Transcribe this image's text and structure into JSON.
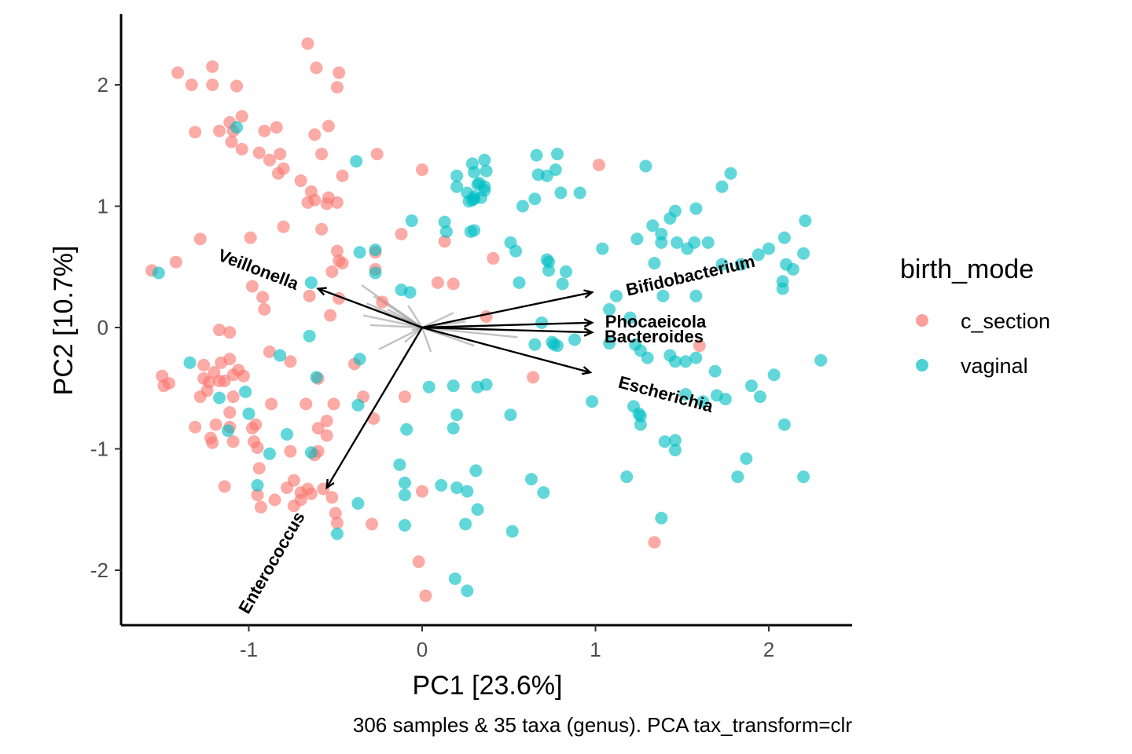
{
  "chart_data": {
    "type": "scatter",
    "xlabel": "PC1 [23.6%]",
    "ylabel": "PC2 [10.7%]",
    "caption": "306 samples & 35 taxa (genus). PCA tax_transform=clr",
    "xlim": [
      -1.73,
      2.46
    ],
    "ylim": [
      -2.46,
      2.57
    ],
    "xticks": [
      -1,
      0,
      1,
      2
    ],
    "yticks": [
      -2,
      -1,
      0,
      1,
      2
    ],
    "grid": false,
    "legend": {
      "title": "birth_mode",
      "position": "right",
      "entries": [
        {
          "label": "c_section",
          "color": "#F8766D"
        },
        {
          "label": "vaginal",
          "color": "#00BFC4"
        }
      ]
    },
    "series": [
      {
        "name": "c_section",
        "color": "#F8766D",
        "points": [
          [
            -0.66,
            2.34
          ],
          [
            -0.61,
            2.14
          ],
          [
            -0.48,
            2.1
          ],
          [
            -0.49,
            1.98
          ],
          [
            -1.41,
            2.1
          ],
          [
            -1.21,
            2.15
          ],
          [
            -1.33,
            2.0
          ],
          [
            -1.21,
            2.0
          ],
          [
            -1.07,
            1.99
          ],
          [
            -1.04,
            1.74
          ],
          [
            -1.11,
            1.69
          ],
          [
            -1.09,
            1.62
          ],
          [
            -1.17,
            1.62
          ],
          [
            -0.54,
            1.66
          ],
          [
            -0.62,
            1.59
          ],
          [
            -1.31,
            1.61
          ],
          [
            -0.91,
            1.62
          ],
          [
            -0.84,
            1.65
          ],
          [
            -1.1,
            1.53
          ],
          [
            -1.04,
            1.47
          ],
          [
            -0.94,
            1.44
          ],
          [
            -0.82,
            1.43
          ],
          [
            -0.88,
            1.38
          ],
          [
            -0.8,
            1.31
          ],
          [
            -0.83,
            1.27
          ],
          [
            -0.58,
            1.43
          ],
          [
            -0.26,
            1.43
          ],
          [
            -0.46,
            1.25
          ],
          [
            -0.7,
            1.21
          ],
          [
            -0.64,
            1.12
          ],
          [
            -0.54,
            1.07
          ],
          [
            -0.62,
            1.05
          ],
          [
            -0.66,
            1.03
          ],
          [
            -0.55,
            1.02
          ],
          [
            -0.49,
            1.03
          ],
          [
            0.0,
            1.3
          ],
          [
            1.02,
            1.34
          ],
          [
            -0.8,
            0.83
          ],
          [
            -0.58,
            0.81
          ],
          [
            -1.28,
            0.73
          ],
          [
            -0.99,
            0.74
          ],
          [
            -0.12,
            0.77
          ],
          [
            0.13,
            0.71
          ],
          [
            -0.49,
            0.63
          ],
          [
            -0.48,
            0.55
          ],
          [
            -0.46,
            0.53
          ],
          [
            -0.27,
            0.62
          ],
          [
            -1.56,
            0.47
          ],
          [
            -1.42,
            0.54
          ],
          [
            -0.52,
            0.46
          ],
          [
            -0.27,
            0.48
          ],
          [
            0.41,
            0.57
          ],
          [
            -0.98,
            0.34
          ],
          [
            -0.65,
            0.26
          ],
          [
            -0.92,
            0.25
          ],
          [
            -0.91,
            0.15
          ],
          [
            -0.48,
            0.24
          ],
          [
            -0.23,
            0.21
          ],
          [
            0.09,
            0.37
          ],
          [
            0.18,
            0.36
          ],
          [
            -0.53,
            0.1
          ],
          [
            0.37,
            0.09
          ],
          [
            -1.17,
            -0.02
          ],
          [
            -1.11,
            -0.04
          ],
          [
            -0.88,
            -0.2
          ],
          [
            -1.11,
            -0.26
          ],
          [
            -0.76,
            -0.28
          ],
          [
            -1.16,
            -0.29
          ],
          [
            -1.06,
            -0.35
          ],
          [
            -1.26,
            -0.31
          ],
          [
            -1.09,
            -0.39
          ],
          [
            -1.2,
            -0.37
          ],
          [
            -1.17,
            -0.44
          ],
          [
            -1.14,
            -0.44
          ],
          [
            -1.03,
            -0.4
          ],
          [
            -0.6,
            -0.42
          ],
          [
            -0.39,
            -0.3
          ],
          [
            -1.5,
            -0.4
          ],
          [
            -1.49,
            -0.48
          ],
          [
            -1.46,
            -0.46
          ],
          [
            -1.26,
            -0.42
          ],
          [
            -1.23,
            -0.45
          ],
          [
            -1.24,
            -0.52
          ],
          [
            -1.28,
            -0.57
          ],
          [
            -1.09,
            -0.57
          ],
          [
            -0.87,
            -0.63
          ],
          [
            -0.67,
            -0.63
          ],
          [
            -0.51,
            -0.63
          ],
          [
            -0.34,
            -0.57
          ],
          [
            -0.1,
            -0.57
          ],
          [
            -1.31,
            -0.82
          ],
          [
            -1.19,
            -0.8
          ],
          [
            -1.11,
            -0.82
          ],
          [
            -0.98,
            -0.83
          ],
          [
            -1.11,
            -0.7
          ],
          [
            -0.96,
            -0.8
          ],
          [
            -0.55,
            -0.77
          ],
          [
            -0.6,
            -0.83
          ],
          [
            -0.55,
            -0.89
          ],
          [
            -0.28,
            -0.75
          ],
          [
            -1.21,
            -0.95
          ],
          [
            -1.22,
            -0.91
          ],
          [
            -1.09,
            -0.94
          ],
          [
            -0.97,
            -0.94
          ],
          [
            -0.95,
            -0.99
          ],
          [
            -0.76,
            -1.02
          ],
          [
            -0.62,
            -1.05
          ],
          [
            -0.6,
            -1.02
          ],
          [
            -0.94,
            -1.16
          ],
          [
            -1.14,
            -1.31
          ],
          [
            -0.78,
            -1.32
          ],
          [
            -0.74,
            -1.26
          ],
          [
            -0.7,
            -1.36
          ],
          [
            -0.66,
            -1.33
          ],
          [
            -0.7,
            -1.42
          ],
          [
            -0.64,
            -1.37
          ],
          [
            -0.57,
            -1.33
          ],
          [
            -0.95,
            -1.38
          ],
          [
            -0.93,
            -1.48
          ],
          [
            -0.85,
            -1.42
          ],
          [
            -0.74,
            -1.47
          ],
          [
            -0.52,
            -1.4
          ],
          [
            -0.5,
            -1.53
          ],
          [
            -0.49,
            -1.61
          ],
          [
            -0.29,
            -1.62
          ],
          [
            0.0,
            -1.35
          ],
          [
            -0.02,
            -1.93
          ],
          [
            0.02,
            -2.21
          ],
          [
            1.34,
            -1.77
          ],
          [
            0.64,
            -0.41
          ],
          [
            1.6,
            -0.15
          ]
        ]
      },
      {
        "name": "vaginal",
        "color": "#00BFC4",
        "points": [
          [
            -1.52,
            0.45
          ],
          [
            -1.07,
            1.65
          ],
          [
            -1.34,
            -0.29
          ],
          [
            -1.17,
            -0.58
          ],
          [
            -1.12,
            -0.85
          ],
          [
            -1.02,
            -0.53
          ],
          [
            -1.0,
            -0.71
          ],
          [
            -0.88,
            -1.04
          ],
          [
            -0.78,
            -0.88
          ],
          [
            -0.64,
            -1.03
          ],
          [
            -0.95,
            -1.3
          ],
          [
            -0.82,
            -0.23
          ],
          [
            -0.64,
            0.37
          ],
          [
            -0.65,
            -0.07
          ],
          [
            -0.61,
            -0.41
          ],
          [
            -0.37,
            -0.64
          ],
          [
            -0.37,
            -1.45
          ],
          [
            -0.49,
            -1.7
          ],
          [
            -0.36,
            0.62
          ],
          [
            -0.38,
            1.37
          ],
          [
            -0.27,
            0.45
          ],
          [
            -0.27,
            0.64
          ],
          [
            -0.12,
            0.31
          ],
          [
            -0.07,
            0.29
          ],
          [
            -0.06,
            0.88
          ],
          [
            -0.36,
            -0.26
          ],
          [
            -0.13,
            -1.13
          ],
          [
            -0.1,
            -1.28
          ],
          [
            -0.1,
            -1.38
          ],
          [
            -0.1,
            -1.63
          ],
          [
            -0.09,
            -0.84
          ],
          [
            0.04,
            -0.49
          ],
          [
            0.11,
            -1.3
          ],
          [
            0.13,
            0.87
          ],
          [
            0.14,
            0.79
          ],
          [
            0.2,
            1.25
          ],
          [
            0.2,
            1.16
          ],
          [
            0.26,
            1.11
          ],
          [
            0.27,
            1.04
          ],
          [
            0.3,
            1.06
          ],
          [
            0.28,
            0.79
          ],
          [
            0.3,
            1.28
          ],
          [
            0.33,
            1.19
          ],
          [
            0.32,
            1.18
          ],
          [
            0.29,
            1.05
          ],
          [
            0.3,
            1.08
          ],
          [
            0.36,
            1.16
          ],
          [
            0.34,
            1.07
          ],
          [
            0.37,
            1.29
          ],
          [
            0.36,
            1.13
          ],
          [
            0.36,
            1.38
          ],
          [
            0.3,
            0.8
          ],
          [
            0.29,
            1.35
          ],
          [
            0.18,
            -0.48
          ],
          [
            0.18,
            -0.83
          ],
          [
            0.2,
            -1.32
          ],
          [
            0.32,
            -0.49
          ],
          [
            0.31,
            -1.18
          ],
          [
            0.32,
            -1.5
          ],
          [
            0.37,
            -0.47
          ],
          [
            0.2,
            -0.72
          ],
          [
            0.25,
            -1.62
          ],
          [
            0.26,
            -1.35
          ],
          [
            0.19,
            -2.07
          ],
          [
            0.26,
            -2.17
          ],
          [
            0.51,
            0.7
          ],
          [
            0.54,
            0.63
          ],
          [
            0.58,
            1.0
          ],
          [
            0.65,
            1.06
          ],
          [
            0.66,
            1.42
          ],
          [
            0.67,
            1.26
          ],
          [
            0.77,
            1.3
          ],
          [
            0.72,
            1.25
          ],
          [
            0.78,
            1.43
          ],
          [
            0.8,
            1.11
          ],
          [
            0.72,
            0.56
          ],
          [
            0.73,
            0.54
          ],
          [
            0.83,
            0.46
          ],
          [
            0.56,
            0.37
          ],
          [
            0.73,
            0.47
          ],
          [
            0.81,
            0.36
          ],
          [
            0.91,
            1.11
          ],
          [
            1.04,
            0.65
          ],
          [
            1.08,
            0.15
          ],
          [
            1.12,
            0.26
          ],
          [
            1.29,
            1.33
          ],
          [
            1.24,
            0.73
          ],
          [
            1.33,
            0.84
          ],
          [
            1.34,
            0.53
          ],
          [
            1.38,
            0.7
          ],
          [
            1.38,
            0.77
          ],
          [
            1.43,
            0.9
          ],
          [
            1.46,
            0.96
          ],
          [
            1.47,
            0.7
          ],
          [
            1.53,
            0.65
          ],
          [
            1.57,
            0.7
          ],
          [
            1.58,
            0.98
          ],
          [
            1.65,
            0.7
          ],
          [
            1.73,
            1.16
          ],
          [
            1.78,
            1.27
          ],
          [
            1.73,
            0.52
          ],
          [
            1.84,
            0.52
          ],
          [
            2.0,
            0.65
          ],
          [
            2.09,
            0.74
          ],
          [
            2.1,
            0.52
          ],
          [
            2.08,
            0.38
          ],
          [
            2.21,
            0.88
          ],
          [
            2.2,
            0.61
          ],
          [
            2.14,
            0.48
          ],
          [
            2.08,
            0.32
          ],
          [
            1.94,
            0.6
          ],
          [
            1.39,
            0.26
          ],
          [
            1.58,
            0.26
          ],
          [
            1.2,
            0.08
          ],
          [
            0.69,
            0.04
          ],
          [
            0.65,
            -0.14
          ],
          [
            0.75,
            -0.12
          ],
          [
            0.76,
            -0.14
          ],
          [
            0.78,
            -0.15
          ],
          [
            0.88,
            -0.1
          ],
          [
            1.08,
            -0.13
          ],
          [
            1.23,
            -0.14
          ],
          [
            1.26,
            -0.19
          ],
          [
            1.3,
            -0.25
          ],
          [
            1.43,
            -0.23
          ],
          [
            1.46,
            -0.28
          ],
          [
            1.52,
            -0.28
          ],
          [
            1.58,
            -0.25
          ],
          [
            1.69,
            -0.36
          ],
          [
            0.98,
            -0.61
          ],
          [
            1.22,
            -0.65
          ],
          [
            1.25,
            -0.71
          ],
          [
            1.26,
            -0.73
          ],
          [
            1.26,
            -0.8
          ],
          [
            1.4,
            -0.94
          ],
          [
            1.46,
            -0.93
          ],
          [
            1.46,
            -1.01
          ],
          [
            1.52,
            -0.55
          ],
          [
            1.62,
            -0.61
          ],
          [
            1.7,
            -0.56
          ],
          [
            1.75,
            -0.59
          ],
          [
            1.9,
            -0.48
          ],
          [
            1.95,
            -0.57
          ],
          [
            2.03,
            -0.39
          ],
          [
            2.09,
            -0.8
          ],
          [
            2.3,
            -0.27
          ],
          [
            1.87,
            -1.08
          ],
          [
            1.82,
            -1.23
          ],
          [
            2.2,
            -1.23
          ],
          [
            1.18,
            -1.23
          ],
          [
            1.38,
            -1.57
          ],
          [
            0.51,
            -0.72
          ],
          [
            0.63,
            -1.25
          ],
          [
            0.7,
            -1.36
          ],
          [
            0.52,
            -1.68
          ]
        ]
      }
    ],
    "loadings": [
      {
        "label": "Bifidobacterium",
        "end": [
          0.98,
          0.29
        ],
        "labelled": true
      },
      {
        "label": "Phocaeicola",
        "end": [
          0.98,
          0.04
        ],
        "labelled": true
      },
      {
        "label": "Bacteroides",
        "end": [
          0.98,
          -0.04
        ],
        "labelled": true
      },
      {
        "label": "Escherichia",
        "end": [
          0.97,
          -0.37
        ],
        "labelled": true
      },
      {
        "label": "Veillonella",
        "end": [
          -0.6,
          0.32
        ],
        "labelled": true
      },
      {
        "label": "Enterococcus",
        "end": [
          -0.55,
          -1.32
        ],
        "labelled": true
      }
    ],
    "minor_loadings": [
      [
        -0.35,
        0.35
      ],
      [
        -0.28,
        0.26
      ],
      [
        -0.32,
        0.2
      ],
      [
        -0.34,
        0.1
      ],
      [
        -0.2,
        0.15
      ],
      [
        -0.12,
        0.08
      ],
      [
        -0.25,
        -0.18
      ],
      [
        -0.3,
        0.02
      ],
      [
        -0.1,
        -0.12
      ],
      [
        -0.06,
        -0.02
      ],
      [
        0.3,
        -0.15
      ],
      [
        0.55,
        -0.08
      ],
      [
        0.4,
        -0.02
      ],
      [
        0.25,
        0.05
      ],
      [
        0.12,
        -0.06
      ],
      [
        0.18,
        0.12
      ],
      [
        -0.08,
        0.18
      ],
      [
        0.05,
        -0.2
      ]
    ]
  }
}
